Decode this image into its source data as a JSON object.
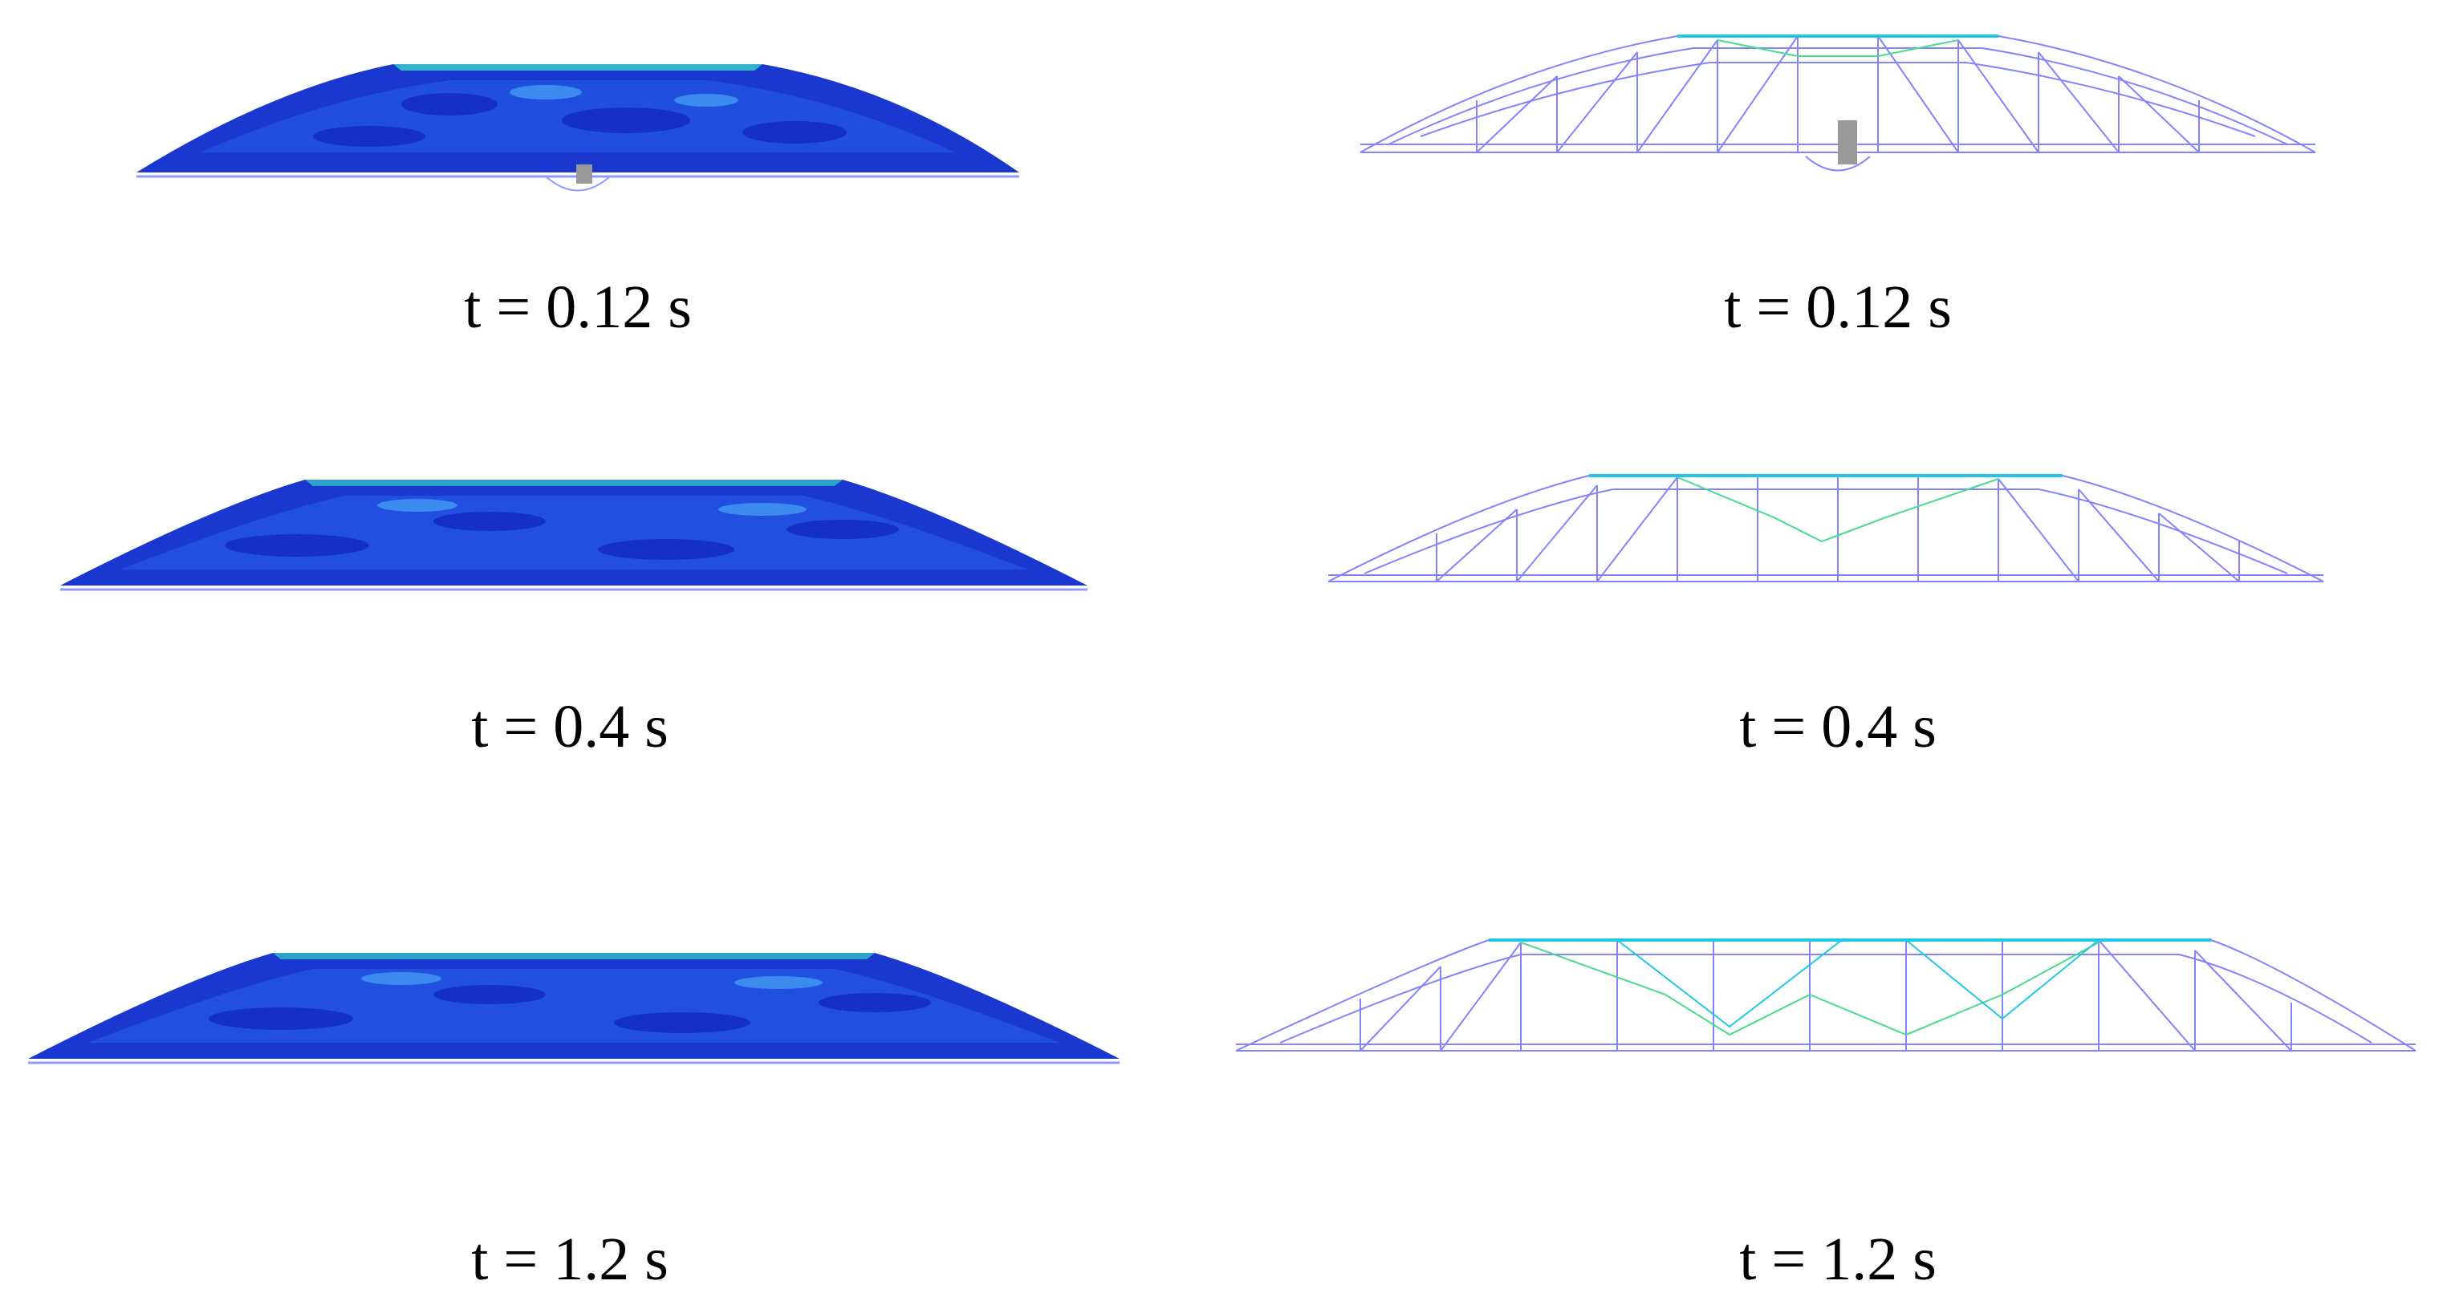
{
  "figure": {
    "panels": [
      {
        "row": 1,
        "column": "left",
        "style": "solid-contour",
        "caption": "t = 0.12 s",
        "projectile_visible": true
      },
      {
        "row": 1,
        "column": "right",
        "style": "wireframe",
        "caption": "t = 0.12 s",
        "projectile_visible": true
      },
      {
        "row": 2,
        "column": "left",
        "style": "solid-contour",
        "caption": "t = 0.4 s",
        "projectile_visible": false
      },
      {
        "row": 2,
        "column": "right",
        "style": "wireframe",
        "caption": "t = 0.4 s",
        "projectile_visible": false
      },
      {
        "row": 3,
        "column": "left",
        "style": "solid-contour",
        "caption": "t = 1.2 s",
        "projectile_visible": false
      },
      {
        "row": 3,
        "column": "right",
        "style": "wireframe",
        "caption": "t = 1.2 s",
        "projectile_visible": false
      }
    ],
    "colors": {
      "background": "#ffffff",
      "contour_dark": "#1430c8",
      "contour_mid": "#2458e6",
      "contour_light": "#3c8cf0",
      "contour_high": "#38d2c8",
      "mesh_blue": "#5a5aff",
      "mesh_cyan": "#1ec8e6",
      "mesh_green": "#46dc8c",
      "projectile": "#9a9a9a",
      "caption_text": "#000000"
    }
  }
}
